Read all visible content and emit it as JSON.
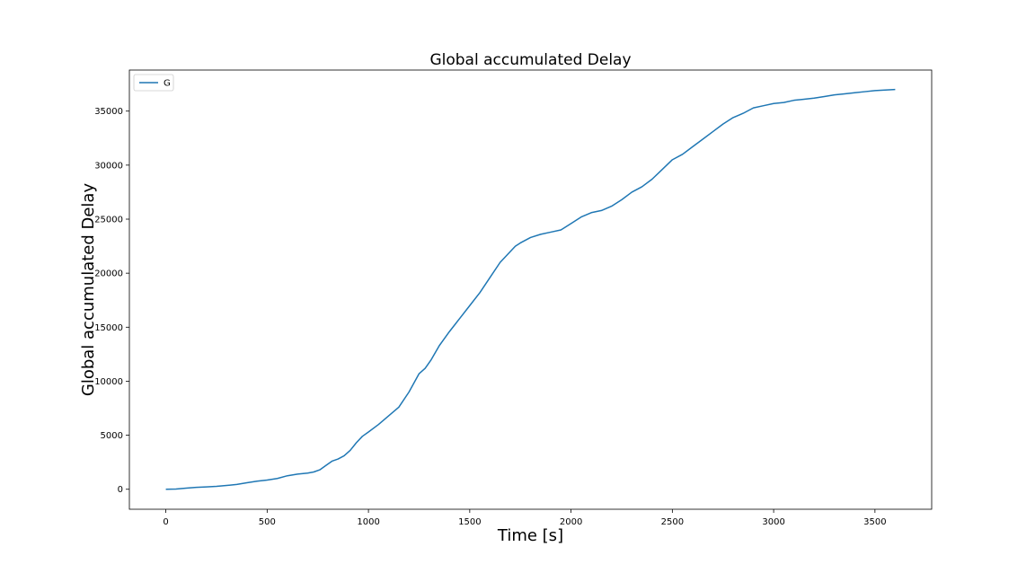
{
  "chart_data": {
    "type": "line",
    "title": "Global accumulated Delay",
    "xlabel": "Time [s]",
    "ylabel": "Global accumulated Delay",
    "xlim": [
      -180,
      3780
    ],
    "ylim": [
      -1850,
      38800
    ],
    "xticks": [
      0,
      500,
      1000,
      1500,
      2000,
      2500,
      3000,
      3500
    ],
    "yticks": [
      0,
      5000,
      10000,
      15000,
      20000,
      25000,
      30000,
      35000
    ],
    "grid": false,
    "legend_position": "top-left",
    "series": [
      {
        "name": "G",
        "color": "#1f77b4",
        "x": [
          0,
          50,
          100,
          150,
          200,
          250,
          300,
          350,
          400,
          450,
          500,
          550,
          600,
          650,
          700,
          730,
          760,
          790,
          820,
          850,
          880,
          910,
          940,
          970,
          1000,
          1050,
          1100,
          1150,
          1200,
          1250,
          1280,
          1310,
          1350,
          1400,
          1450,
          1500,
          1550,
          1600,
          1650,
          1700,
          1725,
          1750,
          1800,
          1850,
          1900,
          1950,
          2000,
          2050,
          2100,
          2150,
          2200,
          2250,
          2300,
          2350,
          2400,
          2450,
          2500,
          2550,
          2600,
          2650,
          2700,
          2750,
          2800,
          2850,
          2900,
          2950,
          3000,
          3050,
          3100,
          3150,
          3200,
          3250,
          3300,
          3350,
          3400,
          3450,
          3500,
          3550,
          3600
        ],
        "y": [
          0,
          20,
          100,
          180,
          220,
          270,
          350,
          450,
          600,
          750,
          850,
          1000,
          1250,
          1400,
          1500,
          1600,
          1800,
          2200,
          2600,
          2800,
          3100,
          3600,
          4300,
          4900,
          5300,
          6000,
          6800,
          7600,
          9000,
          10700,
          11200,
          12000,
          13300,
          14600,
          15800,
          17000,
          18200,
          19600,
          21000,
          22000,
          22500,
          22800,
          23300,
          23600,
          23800,
          24000,
          24600,
          25200,
          25600,
          25800,
          26200,
          26800,
          27500,
          28000,
          28700,
          29600,
          30500,
          31000,
          31700,
          32400,
          33100,
          33800,
          34400,
          34800,
          35300,
          35500,
          35700,
          35800,
          36000,
          36100,
          36200,
          36350,
          36500,
          36600,
          36700,
          36800,
          36900,
          36950,
          37000
        ]
      }
    ]
  }
}
